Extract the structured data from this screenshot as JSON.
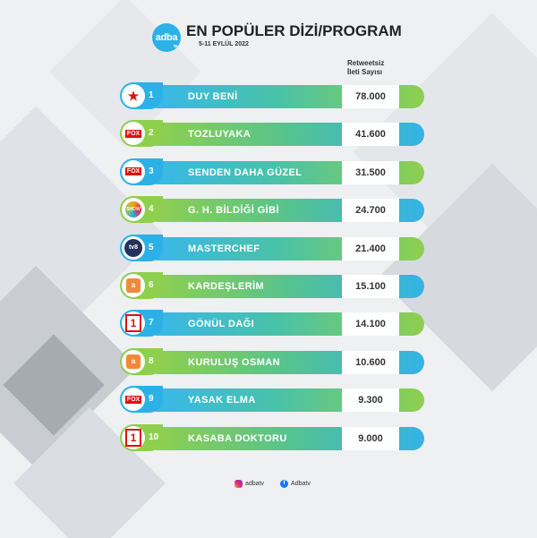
{
  "header": {
    "logo_text": "adba",
    "logo_sub": "tv",
    "title": "EN POPÜLER DİZİ/PROGRAM",
    "subtitle": "5-11 EYLÜL 2022"
  },
  "chart_data": {
    "type": "table",
    "value_header": "Retweetsiz\nİleti Sayısı",
    "rows": [
      {
        "rank": "1",
        "channel": "star",
        "channel_icon": "star-tv-logo-icon",
        "name": "DUY BENİ",
        "value": "78.000"
      },
      {
        "rank": "2",
        "channel": "FOX",
        "channel_icon": "fox-logo-icon",
        "name": "TOZLUYAKA",
        "value": "41.600"
      },
      {
        "rank": "3",
        "channel": "FOX",
        "channel_icon": "fox-logo-icon",
        "name": "SENDEN DAHA GÜZEL",
        "value": "31.500"
      },
      {
        "rank": "4",
        "channel": "SHOW",
        "channel_icon": "show-tv-logo-icon",
        "name": "G. H. BİLDİĞİ GİBİ",
        "value": "24.700"
      },
      {
        "rank": "5",
        "channel": "tv8",
        "channel_icon": "tv8-logo-icon",
        "name": "MASTERCHEF",
        "value": "21.400"
      },
      {
        "rank": "6",
        "channel": "atv",
        "channel_icon": "atv-logo-icon",
        "name": "KARDEŞLERİM",
        "value": "15.100"
      },
      {
        "rank": "7",
        "channel": "1",
        "channel_icon": "kanal-d-logo-icon",
        "name": "GÖNÜL DAĞI",
        "value": "14.100"
      },
      {
        "rank": "8",
        "channel": "atv",
        "channel_icon": "atv-logo-icon",
        "name": "KURULUŞ OSMAN",
        "value": "10.600"
      },
      {
        "rank": "9",
        "channel": "FOX",
        "channel_icon": "fox-logo-icon",
        "name": "YASAK ELMA",
        "value": "9.300"
      },
      {
        "rank": "10",
        "channel": "1",
        "channel_icon": "kanal-d-logo-icon",
        "name": "KASABA DOKTORU",
        "value": "9.000"
      }
    ]
  },
  "footer": {
    "instagram": "adbatv",
    "facebook": "Adbatv"
  },
  "colors": {
    "blue": "#2bb1e6",
    "green": "#8fcf4e"
  }
}
